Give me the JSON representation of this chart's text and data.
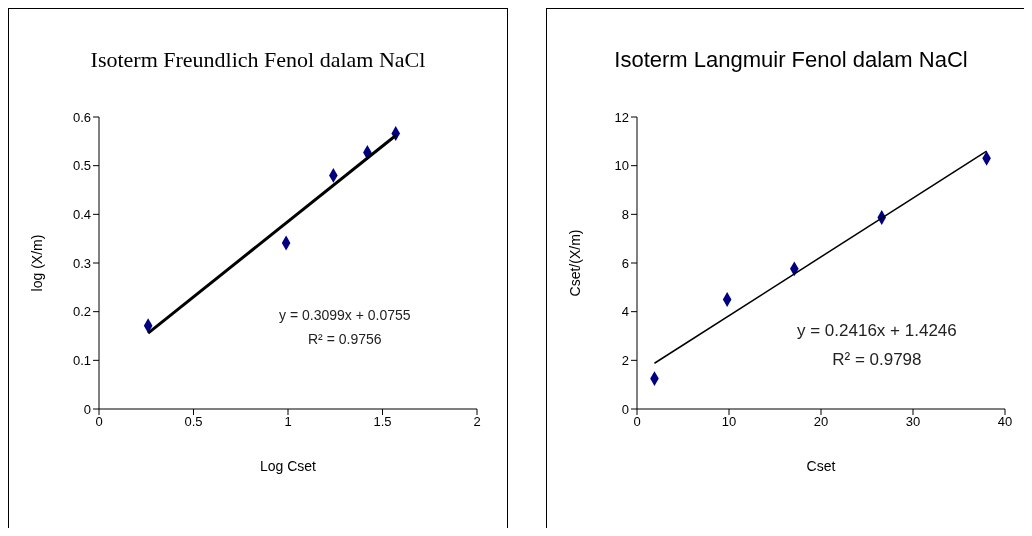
{
  "chart_data": [
    {
      "type": "scatter",
      "title": "Isoterm Freundlich Fenol dalam NaCl",
      "xlabel": "Log Cset",
      "ylabel": "log (X/m)",
      "xlim": [
        0,
        2
      ],
      "xticks": [
        0,
        0.5,
        1,
        1.5,
        2
      ],
      "ylim": [
        0,
        0.6
      ],
      "yticks": [
        0,
        0.1,
        0.2,
        0.3,
        0.4,
        0.5,
        0.6
      ],
      "grid": false,
      "legend": false,
      "marker": "diamond",
      "series": [
        {
          "type": "scatter",
          "color": "#000080",
          "x": [
            0.26,
            0.99,
            1.24,
            1.42,
            1.57
          ],
          "values": [
            0.171,
            0.341,
            0.48,
            0.527,
            0.566
          ]
        },
        {
          "type": "line",
          "color": "#000000",
          "marker": "none",
          "x": [
            0.26,
            1.57
          ],
          "values": [
            0.156,
            0.562
          ]
        }
      ],
      "annotations": [
        "y = 0.3099x + 0.0755",
        "R² = 0.9756"
      ]
    },
    {
      "type": "scatter",
      "title": "Isoterm Langmuir Fenol dalam NaCl",
      "xlabel": "Cset",
      "ylabel": "Cset/(X/m)",
      "xlim": [
        0,
        40
      ],
      "xticks": [
        0,
        10,
        20,
        30,
        40
      ],
      "ylim": [
        0,
        12
      ],
      "yticks": [
        0,
        2,
        4,
        6,
        8,
        10,
        12
      ],
      "grid": false,
      "legend": false,
      "marker": "diamond",
      "series": [
        {
          "type": "scatter",
          "color": "#000080",
          "x": [
            1.9,
            9.8,
            17.1,
            26.6,
            38.0
          ],
          "values": [
            1.25,
            4.5,
            5.76,
            7.87,
            10.3
          ]
        },
        {
          "type": "line",
          "color": "#000000",
          "marker": "none",
          "x": [
            1.9,
            38.0
          ],
          "values": [
            1.88,
            10.6
          ]
        }
      ],
      "annotations": [
        "y = 0.2416x + 1.4246",
        "R² = 0.9798"
      ]
    }
  ]
}
